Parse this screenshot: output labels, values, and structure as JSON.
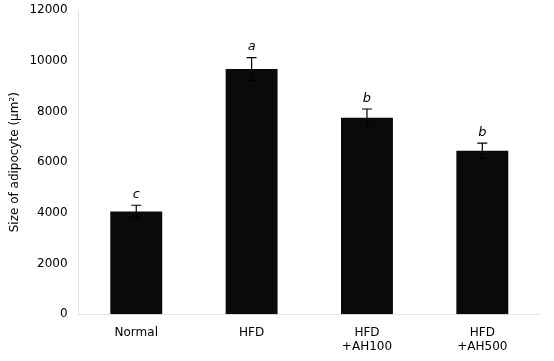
{
  "chart_data": {
    "type": "bar",
    "categories": [
      "Normal",
      "HFD",
      "HFD\n+AH100",
      "HFD\n+AH500"
    ],
    "values": [
      4050,
      9680,
      7750,
      6450
    ],
    "errors": [
      250,
      450,
      350,
      300
    ],
    "annotations": [
      "c",
      "a",
      "b",
      "b"
    ],
    "color": "#0a0a0a",
    "ylabel": "Size of adipocyte (μm²)",
    "ylim": [
      0,
      12000
    ],
    "yticks": [
      0,
      2000,
      4000,
      6000,
      8000,
      10000,
      12000
    ],
    "grid": false
  }
}
